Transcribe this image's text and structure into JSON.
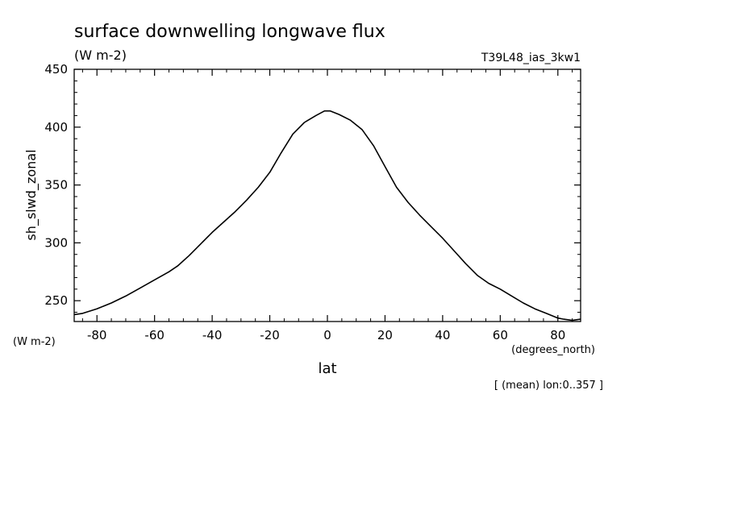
{
  "chart_data": {
    "type": "line",
    "title": "surface downwelling longwave flux",
    "units": "(W m-2)",
    "dataset": "T39L48_ias_3kw1",
    "ylabel": "sh_slwd_zonal",
    "y_units": "(W m-2)",
    "xlabel": "lat",
    "x_units": "(degrees_north)",
    "footnote": "[ (mean) lon:0..357 ]",
    "xlim": [
      -87.9,
      87.9
    ],
    "ylim": [
      232,
      450
    ],
    "x_ticks": [
      -80,
      -60,
      -40,
      -20,
      0,
      20,
      40,
      60,
      80
    ],
    "x_tick_labels": [
      "-80",
      "-60",
      "-40",
      "-20",
      "0",
      "20",
      "40",
      "60",
      "80"
    ],
    "y_ticks": [
      250,
      300,
      350,
      400,
      450
    ],
    "y_tick_labels": [
      "250",
      "300",
      "350",
      "400",
      "450"
    ],
    "grid": false,
    "series": [
      {
        "x": [
          -87.9,
          -85,
          -80,
          -75,
          -70,
          -65,
          -60,
          -55,
          -52,
          -48,
          -44,
          -40,
          -36,
          -32,
          -28,
          -24,
          -20,
          -16,
          -12,
          -8,
          -4,
          -1,
          1,
          4,
          8,
          12,
          16,
          20,
          24,
          28,
          32,
          36,
          40,
          44,
          48,
          52,
          56,
          60,
          64,
          68,
          72,
          76,
          80,
          82,
          85,
          87.9
        ],
        "y": [
          238,
          239,
          243,
          248,
          254,
          261,
          268,
          275,
          280,
          289,
          299,
          309,
          318,
          327,
          337,
          348,
          361,
          378,
          394,
          404,
          410,
          414,
          414,
          411,
          406,
          398,
          384,
          366,
          348,
          335,
          324,
          314,
          304,
          293,
          282,
          272,
          265,
          260,
          254,
          248,
          243,
          239,
          235,
          234,
          233,
          234
        ]
      }
    ]
  }
}
